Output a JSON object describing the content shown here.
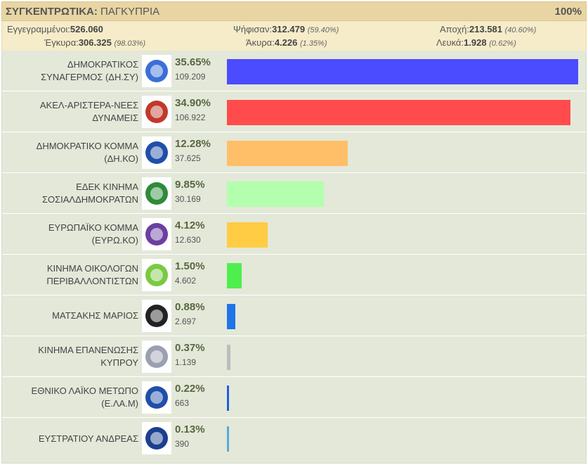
{
  "header": {
    "title_bold": "ΣΥΓΚΕΝΤΡΩΤΙΚΑ:",
    "title_rest": " ΠΑΓΚΥΠΡΙΑ",
    "counted": "100%"
  },
  "stats": {
    "registered_label": "Εγγεγραμμένοι:",
    "registered": "526.060",
    "voted_label": "Ψήφισαν:",
    "voted": "312.479",
    "voted_pct": "(59.40%)",
    "abstention_label": "Αποχή:",
    "abstention": "213.581",
    "abstention_pct": "(40.60%)",
    "valid_label": "Έγκυρα:",
    "valid": "306.325",
    "valid_pct": "(98.03%)",
    "invalid_label": "Άκυρα:",
    "invalid": "4.226",
    "invalid_pct": "(1.35%)",
    "blank_label": "Λευκά:",
    "blank": "1.928",
    "blank_pct": "(0.62%)"
  },
  "parties": [
    {
      "line1": "ΔΗΜΟΚΡΑΤΙΚΟΣ",
      "line2": "ΣΥΝΑΓΕΡΜΟΣ (ΔΗ.ΣΥ)",
      "pct": "35.65%",
      "votes": "109.209",
      "share": 35.65,
      "color": "#4b4bff",
      "logo": "disy-logo-icon"
    },
    {
      "line1": "ΑΚΕΛ-ΑΡΙΣΤΕΡΑ-ΝΕΕΣ",
      "line2": "ΔΥΝΑΜΕΙΣ",
      "pct": "34.90%",
      "votes": "106.922",
      "share": 34.9,
      "color": "#ff4b4b",
      "logo": "akel-logo-icon"
    },
    {
      "line1": "ΔΗΜΟΚΡΑΤΙΚΟ ΚΟΜΜΑ",
      "line2": "(ΔΗ.ΚΟ)",
      "pct": "12.28%",
      "votes": "37.625",
      "share": 12.28,
      "color": "#ffbf69",
      "logo": "diko-logo-icon"
    },
    {
      "line1": "ΕΔΕΚ ΚΙΝΗΜΑ",
      "line2": "ΣΟΣΙΑΛΔΗΜΟΚΡΑΤΩΝ",
      "pct": "9.85%",
      "votes": "30.169",
      "share": 9.85,
      "color": "#b3ffad",
      "logo": "edek-logo-icon"
    },
    {
      "line1": "ΕΥΡΩΠΑΪΚΟ ΚΟΜΜΑ",
      "line2": "(ΕΥΡΩ.ΚΟ)",
      "pct": "4.12%",
      "votes": "12.630",
      "share": 4.12,
      "color": "#ffcc44",
      "logo": "evroko-logo-icon"
    },
    {
      "line1": "ΚΙΝΗΜΑ ΟΙΚΟΛΟΓΩΝ",
      "line2": "ΠΕΡΙΒΑΛΛΟΝΤΙΣΤΩΝ",
      "pct": "1.50%",
      "votes": "4.602",
      "share": 1.5,
      "color": "#4fee4f",
      "logo": "ecologists-logo-icon"
    },
    {
      "line1": "ΜΑΤΣΑΚΗΣ ΜΑΡΙΟΣ",
      "line2": "",
      "pct": "0.88%",
      "votes": "2.697",
      "share": 0.88,
      "color": "#1f74e8",
      "logo": "independent-logo-icon"
    },
    {
      "line1": "ΚΙΝΗΜΑ ΕΠΑΝΕΝΩΣΗΣ",
      "line2": "ΚΥΠΡΟΥ",
      "pct": "0.37%",
      "votes": "1.139",
      "share": 0.37,
      "color": "#bdbdbd",
      "logo": "reunification-logo-icon"
    },
    {
      "line1": "ΕΘΝΙΚΟ ΛΑΪΚΟ ΜΕΤΩΠΟ",
      "line2": "(Ε.ΛΑ.Μ)",
      "pct": "0.22%",
      "votes": "663",
      "share": 0.22,
      "color": "#1f5fe0",
      "logo": "elam-logo-icon"
    },
    {
      "line1": "ΕΥΣΤΡΑΤΙΟΥ ΑΝΔΡΕΑΣ",
      "line2": "",
      "pct": "0.13%",
      "votes": "390",
      "share": 0.13,
      "color": "#5ba8d6",
      "logo": "guinness-logo-icon"
    }
  ]
}
